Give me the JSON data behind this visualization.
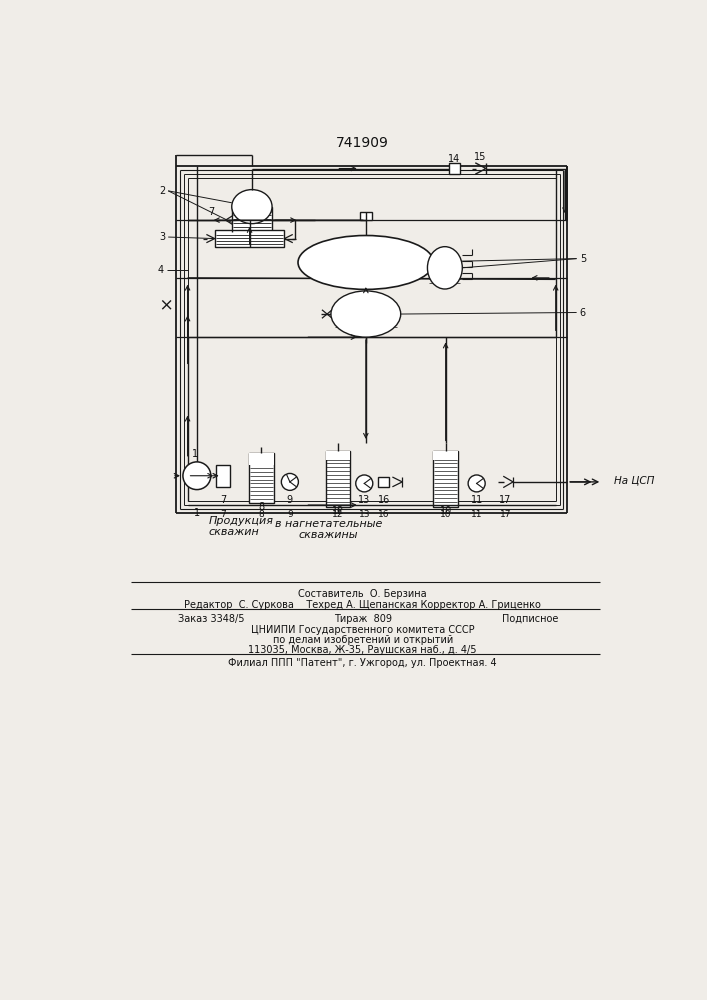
{
  "title": "741909",
  "bg_color": "#f0ede8",
  "line_color": "#1a1a1a",
  "text_color": "#111111",
  "fig_width": 7.07,
  "fig_height": 10.0,
  "footer_line1": "Составитель  О. Берзина",
  "footer_line2": "Редактор  С. Суркова    Техред А. Щепанская Корректор А. Гриценко",
  "footer_zak": "Заказ 3348/5",
  "footer_tir": "Тираж  809",
  "footer_pod": "Подписное",
  "footer_line3": "ЦНИИПИ Государственного комитета СССР",
  "footer_line4": "по делам изобретений и открытий",
  "footer_line5": "113035, Москва, Ж-35, Раушская наб., д. 4/5",
  "footer_line6": "Филиал ППП \"Патент\", г. Ужгород, ул. Проектная. 4",
  "label_prod": "Продукция\nскважин",
  "label_nagn": "в нагнетательные\nскважины",
  "label_tsp": "На ЦСП"
}
